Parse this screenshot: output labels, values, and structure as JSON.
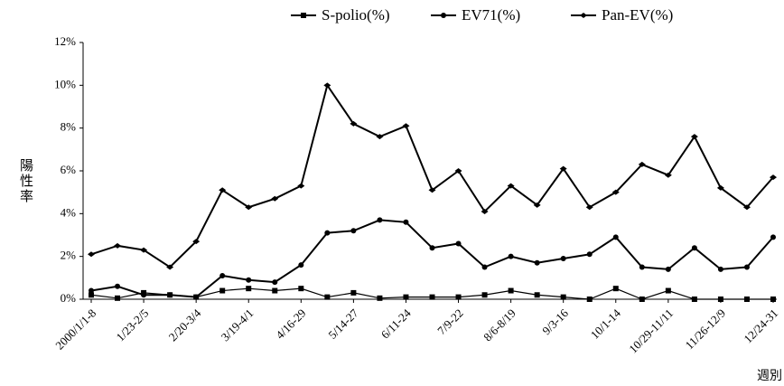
{
  "chart_data": {
    "type": "line",
    "y_label": "陽性率",
    "x_label": "週別",
    "categories": [
      "2000/1/1-8",
      null,
      "1/23-2/5",
      null,
      "2/20-3/4",
      null,
      "3/19-4/1",
      null,
      "4/16-29",
      null,
      "5/14-27",
      null,
      "6/11-24",
      null,
      "7/9-22",
      null,
      "8/6-8/19",
      null,
      "9/3-16",
      null,
      "10/1-14",
      null,
      "10/29-11/11",
      null,
      "11/26-12/9",
      null,
      "12/24-31"
    ],
    "series": [
      {
        "name": "S-polio(%)",
        "color": "#000000",
        "marker": "square",
        "values": [
          0.2,
          0.05,
          0.3,
          0.2,
          0.1,
          0.4,
          0.5,
          0.4,
          0.5,
          0.1,
          0.3,
          0.05,
          0.1,
          0.1,
          0.1,
          0.2,
          0.4,
          0.2,
          0.1,
          0,
          0.5,
          0,
          0.4,
          0,
          0,
          0,
          0
        ]
      },
      {
        "name": "EV71(%)",
        "color": "#000000",
        "marker": "circle",
        "values": [
          0.4,
          0.6,
          0.2,
          0.2,
          0.1,
          1.1,
          0.9,
          0.8,
          1.6,
          3.1,
          3.2,
          3.7,
          3.6,
          2.4,
          2.6,
          1.5,
          2.0,
          1.7,
          1.9,
          2.1,
          2.9,
          1.5,
          1.4,
          2.4,
          1.4,
          1.5,
          2.9
        ]
      },
      {
        "name": "Pan-EV(%)",
        "color": "#000000",
        "marker": "diamond",
        "values": [
          2.1,
          2.5,
          2.3,
          1.5,
          2.7,
          5.1,
          4.3,
          4.7,
          5.3,
          10.0,
          8.2,
          7.6,
          8.1,
          5.1,
          6.0,
          4.1,
          5.3,
          4.4,
          6.1,
          4.3,
          5.0,
          6.3,
          5.8,
          7.6,
          5.2,
          4.3,
          5.7
        ]
      }
    ],
    "ylim": [
      0,
      12
    ],
    "yticks": [
      {
        "value": 0,
        "label": "0%"
      },
      {
        "value": 2,
        "label": "2%"
      },
      {
        "value": 4,
        "label": "4%"
      },
      {
        "value": 6,
        "label": "6%"
      },
      {
        "value": 8,
        "label": "8%"
      },
      {
        "value": 10,
        "label": "10%"
      },
      {
        "value": 12,
        "label": "12%"
      }
    ],
    "legend": "top"
  }
}
